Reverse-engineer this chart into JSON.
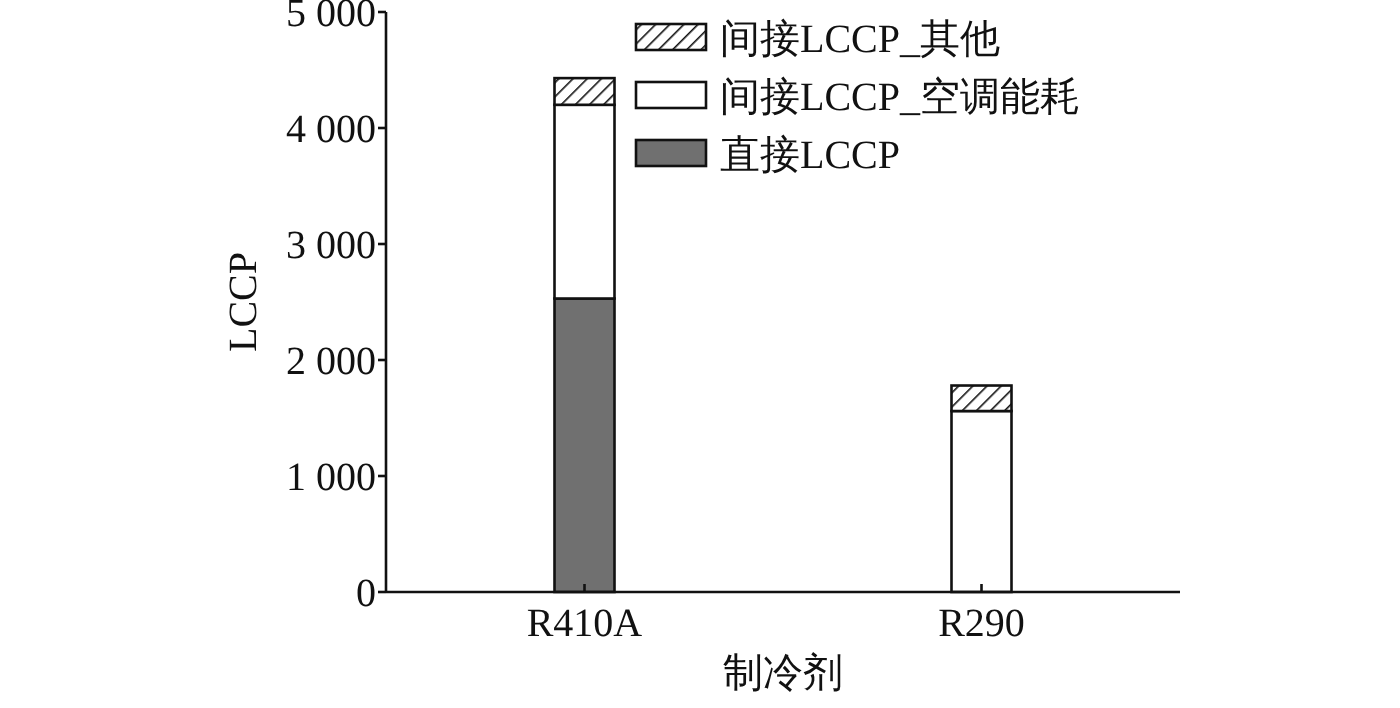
{
  "chart_data": {
    "type": "bar",
    "stacked": true,
    "xlabel": "制冷剂",
    "ylabel": "LCCP",
    "categories": [
      "R410A",
      "R290"
    ],
    "series": [
      {
        "name": "直接LCCP",
        "color": "#707070",
        "values": [
          2530,
          0
        ]
      },
      {
        "name": "间接LCCP_空调能耗",
        "color": "#ffffff",
        "values": [
          1670,
          1560
        ]
      },
      {
        "name": "间接LCCP_其他",
        "color": "#111111",
        "values": [
          230,
          220
        ]
      }
    ],
    "ylim": [
      0,
      5000
    ],
    "yticks": [
      {
        "value": 0,
        "label": "0"
      },
      {
        "value": 1000,
        "label": "1 000"
      },
      {
        "value": 2000,
        "label": "2 000"
      },
      {
        "value": 3000,
        "label": "3 000"
      },
      {
        "value": 4000,
        "label": "4 000"
      },
      {
        "value": 5000,
        "label": "5 000"
      }
    ],
    "legend": "top right",
    "grid": false
  }
}
